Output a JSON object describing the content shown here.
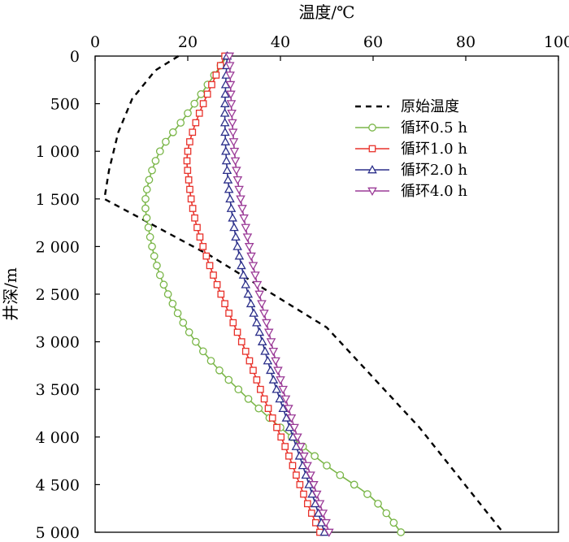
{
  "chart_data": {
    "type": "line",
    "title": "",
    "xlabel": "温度/℃",
    "ylabel": "井深/m",
    "xlim": [
      0,
      100
    ],
    "ylim": [
      0,
      5000
    ],
    "x_axis_position": "top",
    "y_axis_inverted": true,
    "x_ticks": [
      0,
      20,
      40,
      60,
      80,
      100
    ],
    "x_tick_labels": [
      "0",
      "20",
      "40",
      "60",
      "80",
      "100"
    ],
    "y_ticks": [
      0,
      500,
      1000,
      1500,
      2000,
      2500,
      3000,
      3500,
      4000,
      4500,
      5000
    ],
    "y_tick_labels": [
      "0",
      "500",
      "1 000",
      "1 500",
      "2 000",
      "2 500",
      "3 000",
      "3 500",
      "4 000",
      "4 500",
      "5 000"
    ],
    "legend_position": "top-right",
    "series": [
      {
        "name": "原始温度",
        "color": "#000000",
        "style": "dashed",
        "marker": "none",
        "points": [
          [
            18,
            0
          ],
          [
            13,
            150
          ],
          [
            8,
            450
          ],
          [
            5,
            800
          ],
          [
            3,
            1200
          ],
          [
            2,
            1500
          ],
          [
            25,
            2100
          ],
          [
            50,
            2850
          ],
          [
            70,
            3900
          ],
          [
            88,
            5000
          ]
        ]
      },
      {
        "name": "循环0.5 h",
        "color": "#7ab648",
        "style": "solid",
        "marker": "circle",
        "points": [
          [
            28.5,
            0
          ],
          [
            20,
            600
          ],
          [
            14,
            1000
          ],
          [
            11,
            1450
          ],
          [
            11.5,
            1800
          ],
          [
            14,
            2300
          ],
          [
            19,
            2800
          ],
          [
            25,
            3200
          ],
          [
            32,
            3550
          ],
          [
            40,
            3900
          ],
          [
            50,
            4300
          ],
          [
            60,
            4650
          ],
          [
            66,
            5000
          ]
        ]
      },
      {
        "name": "循环1.0 h",
        "color": "#e8322b",
        "style": "solid",
        "marker": "square",
        "points": [
          [
            28,
            0
          ],
          [
            22.5,
            600
          ],
          [
            20,
            1000
          ],
          [
            20.2,
            1300
          ],
          [
            21.5,
            1700
          ],
          [
            24,
            2100
          ],
          [
            28,
            2600
          ],
          [
            32.5,
            3100
          ],
          [
            36.5,
            3600
          ],
          [
            41,
            4100
          ],
          [
            45,
            4600
          ],
          [
            48.5,
            5000
          ]
        ]
      },
      {
        "name": "循环2.0 h",
        "color": "#2b2f8a",
        "style": "solid",
        "marker": "triangle-up",
        "points": [
          [
            28.5,
            0
          ],
          [
            28,
            600
          ],
          [
            28.5,
            1200
          ],
          [
            30,
            1800
          ],
          [
            32.5,
            2400
          ],
          [
            35.5,
            2900
          ],
          [
            38.5,
            3400
          ],
          [
            42,
            3900
          ],
          [
            45.5,
            4400
          ],
          [
            49.5,
            5000
          ]
        ]
      },
      {
        "name": "循环4.0 h",
        "color": "#9b3b97",
        "style": "solid",
        "marker": "triangle-down",
        "points": [
          [
            29,
            0
          ],
          [
            29.5,
            600
          ],
          [
            30.5,
            1200
          ],
          [
            32.5,
            1800
          ],
          [
            35,
            2400
          ],
          [
            37.5,
            2900
          ],
          [
            40,
            3400
          ],
          [
            43,
            3900
          ],
          [
            46.5,
            4400
          ],
          [
            50.5,
            5000
          ]
        ]
      }
    ]
  }
}
